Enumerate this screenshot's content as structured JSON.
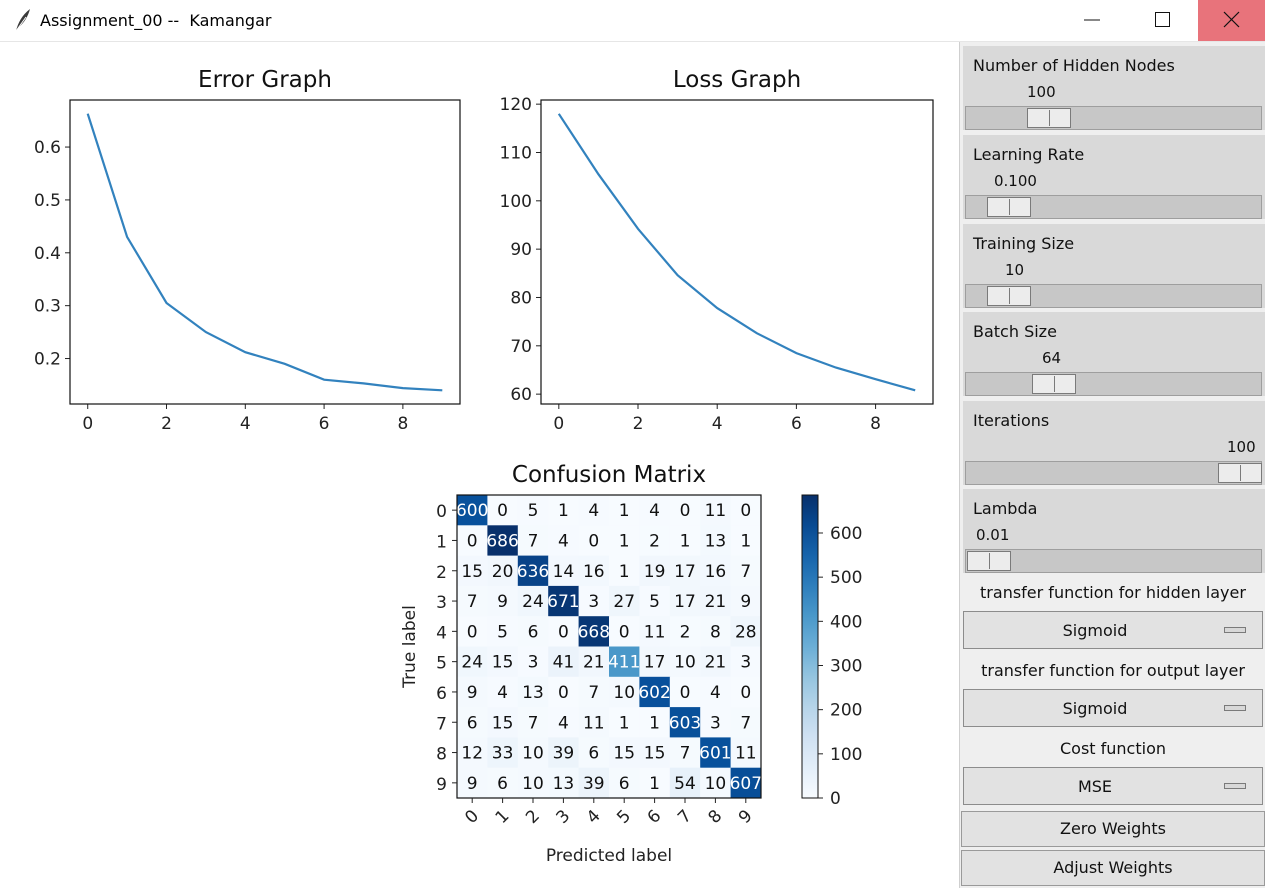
{
  "window": {
    "title": "Assignment_00 --  Kamangar",
    "buttons": [
      "minimize-icon",
      "maximize-icon",
      "close-icon"
    ],
    "close_color": "#e8737b"
  },
  "controls": {
    "sliders": [
      {
        "label": "Number of Hidden Nodes",
        "value": "100",
        "fraction": 0.24
      },
      {
        "label": "Learning Rate",
        "value": "0.100",
        "fraction": 0.08
      },
      {
        "label": "Training Size",
        "value": "10",
        "fraction": 0.08
      },
      {
        "label": "Batch Size",
        "value": "64",
        "fraction": 0.26
      },
      {
        "label": "Iterations",
        "value": "100",
        "fraction": 1.0
      },
      {
        "label": "Lambda",
        "value": "0.01",
        "fraction": 0.0
      }
    ],
    "hidden_transfer": {
      "label": "transfer function for hidden layer",
      "value": "Sigmoid"
    },
    "output_transfer": {
      "label": "transfer function for output layer",
      "value": "Sigmoid"
    },
    "cost": {
      "label": "Cost function",
      "value": "MSE"
    },
    "buttons": [
      "Zero Weights",
      "Adjust Weights"
    ]
  },
  "chart_data": [
    {
      "type": "line",
      "title": "Error Graph",
      "x": [
        0,
        1,
        2,
        3,
        4,
        5,
        6,
        7,
        8,
        9
      ],
      "y": [
        0.663,
        0.43,
        0.305,
        0.25,
        0.212,
        0.19,
        0.16,
        0.153,
        0.144,
        0.14
      ],
      "xticks": [
        "0",
        "2",
        "4",
        "6",
        "8"
      ],
      "yticks": [
        "0.2",
        "0.3",
        "0.4",
        "0.5",
        "0.6"
      ],
      "xlim": [
        -0.45,
        9.45
      ],
      "ylim": [
        0.114,
        0.689
      ],
      "color": "#3282be"
    },
    {
      "type": "line",
      "title": "Loss Graph",
      "x": [
        0,
        1,
        2,
        3,
        4,
        5,
        6,
        7,
        8,
        9
      ],
      "y": [
        118,
        105.5,
        94.2,
        84.6,
        77.8,
        72.6,
        68.5,
        65.5,
        63.1,
        60.8
      ],
      "xticks": [
        "0",
        "2",
        "4",
        "6",
        "8"
      ],
      "yticks": [
        "60",
        "70",
        "80",
        "90",
        "100",
        "110",
        "120"
      ],
      "xlim": [
        -0.45,
        9.45
      ],
      "ylim": [
        57.96,
        120.86
      ],
      "color": "#3282be"
    },
    {
      "type": "heatmap",
      "title": "Confusion Matrix",
      "xlabel": "Predicted label",
      "ylabel": "True label",
      "labels": [
        "0",
        "1",
        "2",
        "3",
        "4",
        "5",
        "6",
        "7",
        "8",
        "9"
      ],
      "cells": [
        [
          "600",
          "0",
          "5",
          "1",
          "4",
          "1",
          "4",
          "0",
          "11",
          "0"
        ],
        [
          "0",
          "686",
          "7",
          "4",
          "0",
          "1",
          "2",
          "1",
          "13",
          "1"
        ],
        [
          "15",
          "20",
          "636",
          "14",
          "16",
          "1",
          "19",
          "17",
          "16",
          "7"
        ],
        [
          "7",
          "9",
          "24",
          "671",
          "3",
          "27",
          "5",
          "17",
          "21",
          "9"
        ],
        [
          "0",
          "5",
          "6",
          "0",
          "668",
          "0",
          "11",
          "2",
          "8",
          "28"
        ],
        [
          "24",
          "15",
          "3",
          "41",
          "21",
          "411",
          "17",
          "10",
          "21",
          "3"
        ],
        [
          "9",
          "4",
          "13",
          "0",
          "7",
          "10",
          "602",
          "0",
          "4",
          "0"
        ],
        [
          "6",
          "15",
          "7",
          "4",
          "11",
          "1",
          "1",
          "603",
          "3",
          "7"
        ],
        [
          "12",
          "33",
          "10",
          "39",
          "6",
          "15",
          "15",
          "7",
          "601",
          "11"
        ],
        [
          "9",
          "6",
          "10",
          "13",
          "39",
          "6",
          "1",
          "54",
          "10",
          "607"
        ]
      ],
      "values": [
        [
          600,
          0,
          5,
          1,
          4,
          1,
          4,
          0,
          11,
          0
        ],
        [
          0,
          686,
          7,
          4,
          0,
          1,
          2,
          1,
          13,
          1
        ],
        [
          15,
          20,
          636,
          14,
          16,
          1,
          19,
          17,
          16,
          7
        ],
        [
          7,
          9,
          24,
          671,
          3,
          27,
          5,
          17,
          21,
          9
        ],
        [
          0,
          5,
          6,
          0,
          668,
          0,
          11,
          2,
          8,
          28
        ],
        [
          24,
          15,
          3,
          41,
          21,
          411,
          17,
          10,
          21,
          3
        ],
        [
          9,
          4,
          13,
          0,
          7,
          10,
          602,
          0,
          4,
          0
        ],
        [
          6,
          15,
          7,
          4,
          11,
          1,
          1,
          603,
          3,
          7
        ],
        [
          12,
          33,
          10,
          39,
          6,
          15,
          15,
          7,
          601,
          11
        ],
        [
          9,
          6,
          10,
          13,
          39,
          6,
          1,
          54,
          10,
          607
        ]
      ],
      "colorbar_ticks": [
        "0",
        "100",
        "200",
        "300",
        "400",
        "500",
        "600"
      ],
      "colorbar_max": 686,
      "colormap": "Blues"
    }
  ]
}
